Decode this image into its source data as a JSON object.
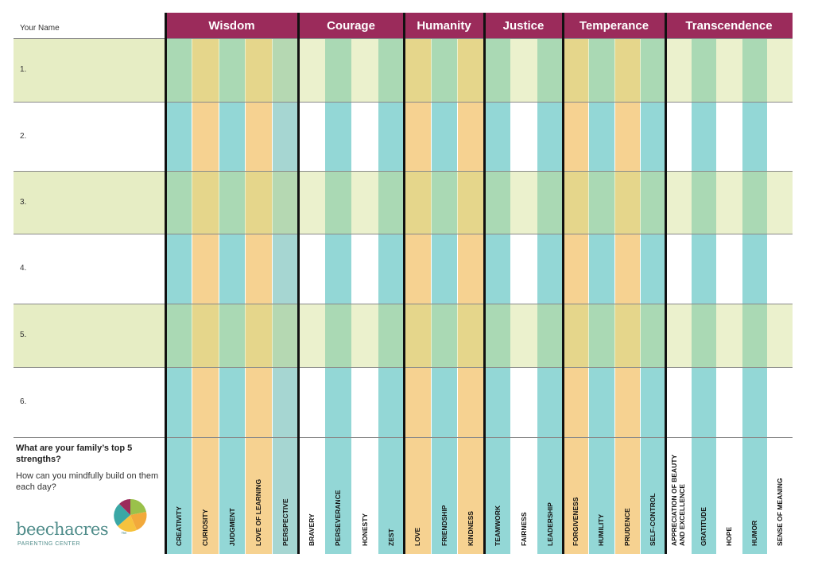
{
  "header": {
    "name_label": "Your Name"
  },
  "rows": [
    "1.",
    "2.",
    "3.",
    "4.",
    "5.",
    "6."
  ],
  "groups": [
    {
      "name": "Wisdom",
      "strengths": [
        {
          "name": "CREATIVITY",
          "color": "#93d7d6"
        },
        {
          "name": "CURIOSITY",
          "color": "#f6d291"
        },
        {
          "name": "JUDGMENT",
          "color": "#93d7d6"
        },
        {
          "name": "LOVE OF LEARNING",
          "color": "#f6d291"
        },
        {
          "name": "PERSPECTIVE",
          "color": "#a6d6d2"
        }
      ]
    },
    {
      "name": "Courage",
      "strengths": [
        {
          "name": "BRAVERY",
          "color": "#ffffff"
        },
        {
          "name": "PERSEVERANCE",
          "color": "#93d7d6"
        },
        {
          "name": "HONESTY",
          "color": "#ffffff"
        },
        {
          "name": "ZEST",
          "color": "#93d7d6"
        }
      ]
    },
    {
      "name": "Humanity",
      "strengths": [
        {
          "name": "LOVE",
          "color": "#f6d291"
        },
        {
          "name": "FRIENDSHIP",
          "color": "#93d7d6"
        },
        {
          "name": "KINDNESS",
          "color": "#f6d291"
        }
      ]
    },
    {
      "name": "Justice",
      "strengths": [
        {
          "name": "TEAMWORK",
          "color": "#93d7d6"
        },
        {
          "name": "FAIRNESS",
          "color": "#ffffff"
        },
        {
          "name": "LEADERSHIP",
          "color": "#93d7d6"
        }
      ]
    },
    {
      "name": "Temperance",
      "strengths": [
        {
          "name": "FORGIVENESS",
          "color": "#f6d291"
        },
        {
          "name": "HUMILITY",
          "color": "#93d7d6"
        },
        {
          "name": "PRUDENCE",
          "color": "#f6d291"
        },
        {
          "name": "SELF-CONTROL",
          "color": "#93d7d6"
        }
      ]
    },
    {
      "name": "Transcendence",
      "strengths": [
        {
          "name": "APPRECIATION OF BEAUTY AND EXCELLENCE",
          "color": "#ffffff"
        },
        {
          "name": "GRATITUDE",
          "color": "#93d7d6"
        },
        {
          "name": "HOPE",
          "color": "#ffffff"
        },
        {
          "name": "HUMOR",
          "color": "#93d7d6"
        },
        {
          "name": "SENSE OF MEANING",
          "color": "#ffffff"
        }
      ]
    }
  ],
  "prompt": {
    "question": "What are your family’s top 5 strengths?",
    "followup": "How can you mindfully build on them each day?"
  },
  "logo": {
    "name": "beechacres",
    "mark": "™",
    "tagline": "PARENTING CENTER"
  }
}
